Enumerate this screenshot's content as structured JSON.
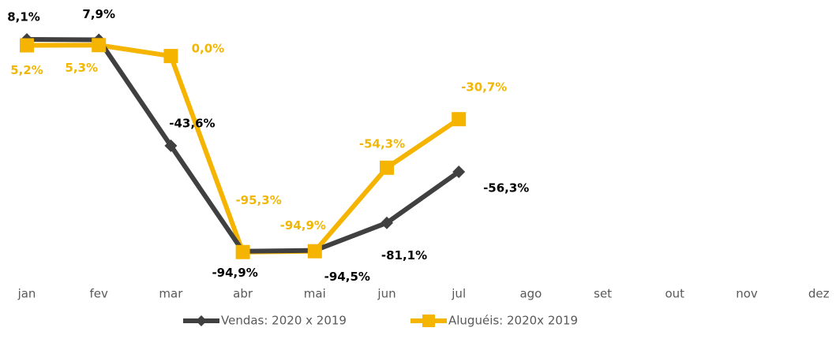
{
  "chart_data": {
    "type": "line",
    "categories": [
      "jan",
      "fev",
      "mar",
      "abr",
      "mai",
      "jun",
      "jul",
      "ago",
      "set",
      "out",
      "nov",
      "dez"
    ],
    "ylim": [
      -100,
      10
    ],
    "series": [
      {
        "name": "Vendas: 2020 x 2019",
        "color": "#404040",
        "marker": "diamond",
        "values": [
          8.1,
          7.9,
          -43.6,
          -94.9,
          -94.5,
          -81.1,
          -56.3,
          null,
          null,
          null,
          null,
          null
        ],
        "value_labels": [
          "8,1%",
          "7,9%",
          "-43,6%",
          "-94,9%",
          "-94,5%",
          "-81,1%",
          "-56,3%",
          null,
          null,
          null,
          null,
          null
        ]
      },
      {
        "name": "Aluguéis: 2020x 2019",
        "color": "#f5b400",
        "marker": "square",
        "values": [
          5.2,
          5.3,
          0.0,
          -95.3,
          -94.9,
          -54.3,
          -30.7,
          null,
          null,
          null,
          null,
          null
        ],
        "value_labels": [
          "5,2%",
          "5,3%",
          "0,0%",
          "-95,3%",
          "-94,9%",
          "-54,3%",
          "-30,7%",
          null,
          null,
          null,
          null,
          null
        ]
      }
    ],
    "legend": "bottom"
  }
}
